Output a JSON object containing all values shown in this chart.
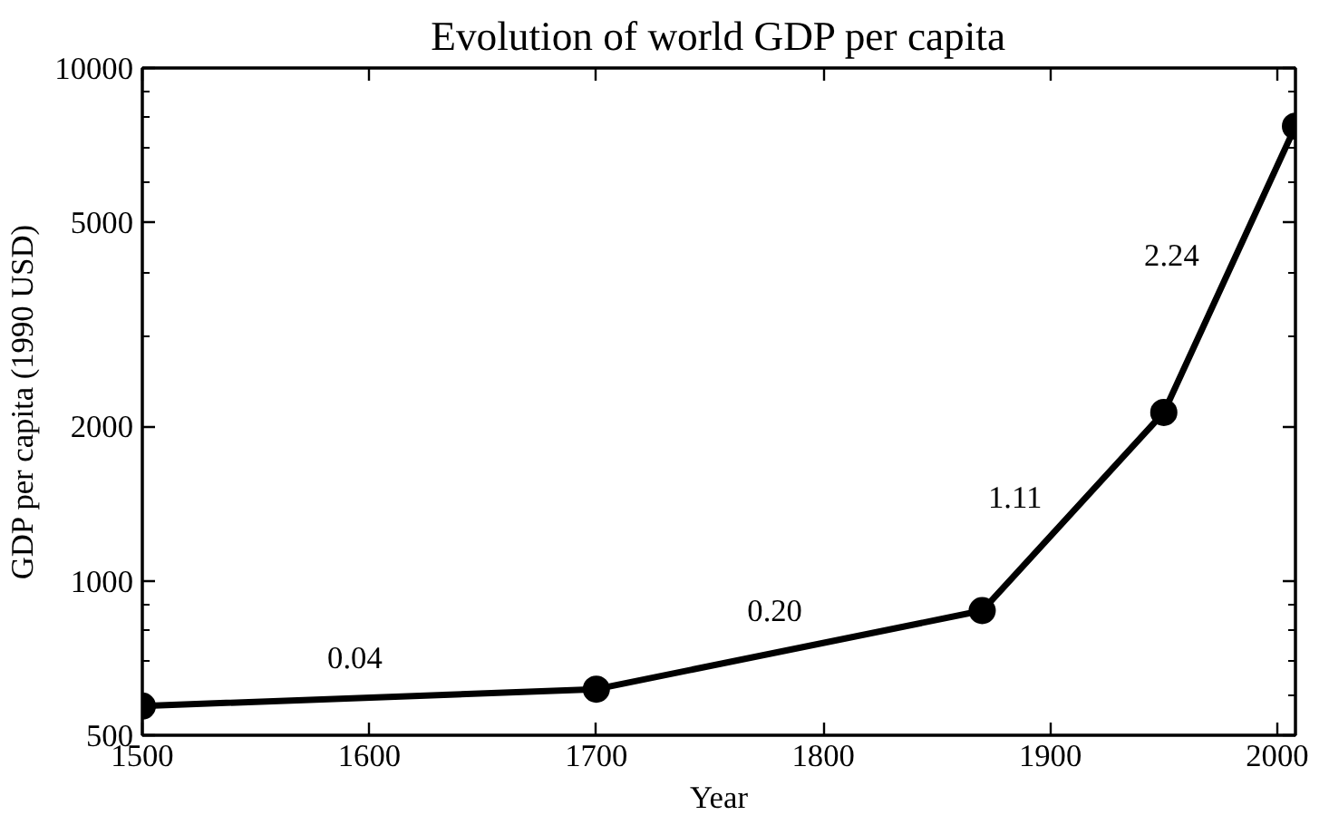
{
  "chart_data": {
    "type": "line",
    "title": "Evolution of world GDP per capita",
    "xlabel": "Year",
    "ylabel": "GDP per capita (1990 USD)",
    "x": [
      1500,
      1700,
      1870,
      1950,
      2008
    ],
    "series": [
      {
        "color": "#000000",
        "values": [
          570,
          615,
          875,
          2130,
          7700
        ]
      }
    ],
    "xlim": [
      1500,
      2008
    ],
    "xticks": [
      1500,
      1600,
      1700,
      1800,
      1900,
      2000
    ],
    "ylim": [
      500,
      10000
    ],
    "yticks": [
      500,
      1000,
      2000,
      5000,
      10000
    ],
    "log": "y",
    "grid": false,
    "marker": "circle",
    "line_style": "solid",
    "annotations": [
      "0.04",
      "0.20",
      "1.11",
      "2.24"
    ]
  }
}
